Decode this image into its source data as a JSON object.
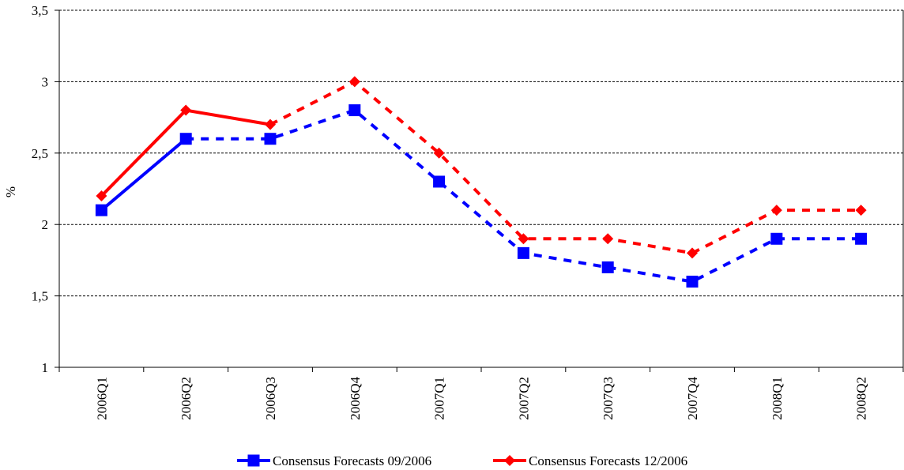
{
  "chart_data": {
    "type": "line",
    "title": "",
    "xlabel": "",
    "ylabel": "%",
    "ylim": [
      1,
      3.5
    ],
    "yticks": [
      "1",
      "1,5",
      "2",
      "2,5",
      "3",
      "3,5"
    ],
    "ytick_values": [
      1,
      1.5,
      2,
      2.5,
      3,
      3.5
    ],
    "grid": true,
    "legend_position": "bottom",
    "categories": [
      "2006Q1",
      "2006Q2",
      "2006Q3",
      "2006Q4",
      "2007Q1",
      "2007Q2",
      "2007Q3",
      "2007Q4",
      "2008Q1",
      "2008Q2"
    ],
    "series": [
      {
        "name": "Consensus Forecasts 09/2006",
        "color": "#0000ff",
        "marker": "square",
        "values": [
          2.1,
          2.6,
          2.6,
          2.8,
          2.3,
          1.8,
          1.7,
          1.6,
          1.9,
          1.9
        ],
        "solid_through_index": 1
      },
      {
        "name": "Consensus Forecasts 12/2006",
        "color": "#ff0000",
        "marker": "diamond",
        "values": [
          2.2,
          2.8,
          2.7,
          3.0,
          2.5,
          1.9,
          1.9,
          1.8,
          2.1,
          2.1
        ],
        "solid_through_index": 2
      }
    ]
  }
}
